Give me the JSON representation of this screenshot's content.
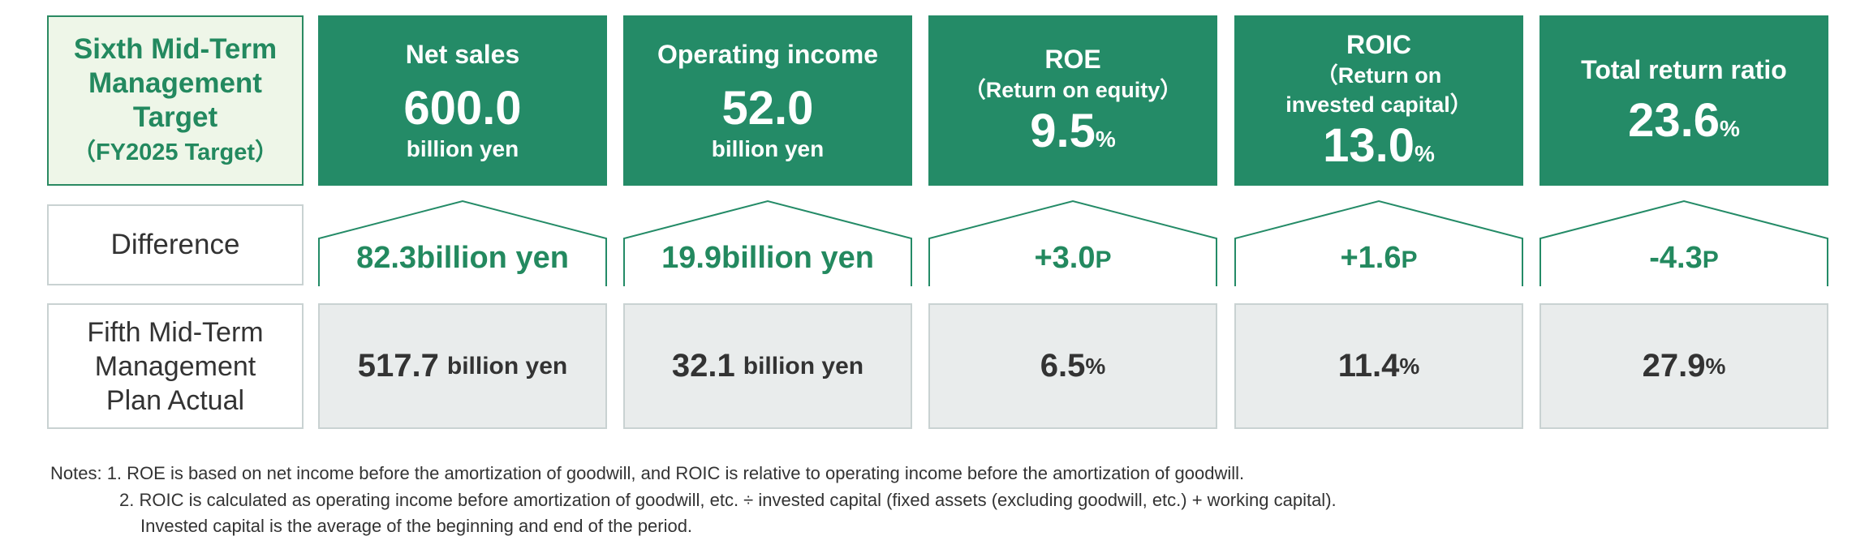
{
  "labels": {
    "target_line1": "Sixth Mid-Term",
    "target_line2": "Management",
    "target_line3": "Target",
    "target_line4": "（FY2025 Target）",
    "difference": "Difference",
    "fifth_line1": "Fifth Mid-Term",
    "fifth_line2": "Management",
    "fifth_line3": "Plan Actual"
  },
  "targets": {
    "net_sales": {
      "title": "Net sales",
      "value": "600.0",
      "unit": "billion yen"
    },
    "operating_income": {
      "title": "Operating income",
      "value": "52.0",
      "unit": "billion yen"
    },
    "roe": {
      "title": "ROE",
      "sub": "（Return on equity）",
      "value": "9.5",
      "unit": "%"
    },
    "roic": {
      "title": "ROIC",
      "sub1": "（Return on",
      "sub2": "invested capital）",
      "value": "13.0",
      "unit": "%"
    },
    "total_return": {
      "title": "Total return ratio",
      "value": "23.6",
      "unit": "%"
    }
  },
  "differences": {
    "net_sales": {
      "value": "82.3billion yen"
    },
    "operating_income": {
      "value": "19.9billion yen"
    },
    "roe": {
      "value": "+3.0",
      "unit": "P"
    },
    "roic": {
      "value": "+1.6",
      "unit": "P"
    },
    "total_return": {
      "value": "-4.3",
      "unit": "P"
    }
  },
  "fifth_actual": {
    "net_sales": {
      "value": "517.7",
      "unit": "billion yen"
    },
    "operating_income": {
      "value": "32.1",
      "unit": "billion yen"
    },
    "roe": {
      "value": "6.5",
      "unit": "%"
    },
    "roic": {
      "value": "11.4",
      "unit": "%"
    },
    "total_return": {
      "value": "27.9",
      "unit": "%"
    }
  },
  "notes": {
    "line1": "Notes: 1. ROE is based on net income before the amortization of goodwill, and ROIC is relative to operating income before the amortization of goodwill.",
    "line2": "2. ROIC is calculated as operating income before amortization of goodwill, etc. ÷ invested capital (fixed assets (excluding goodwill, etc.) + working capital).",
    "line3": "Invested capital is the average of the beginning and end of the period."
  },
  "colors": {
    "brand_green": "#248b67",
    "light_green": "#eef6e8",
    "gray_cell": "#e9ecec"
  }
}
